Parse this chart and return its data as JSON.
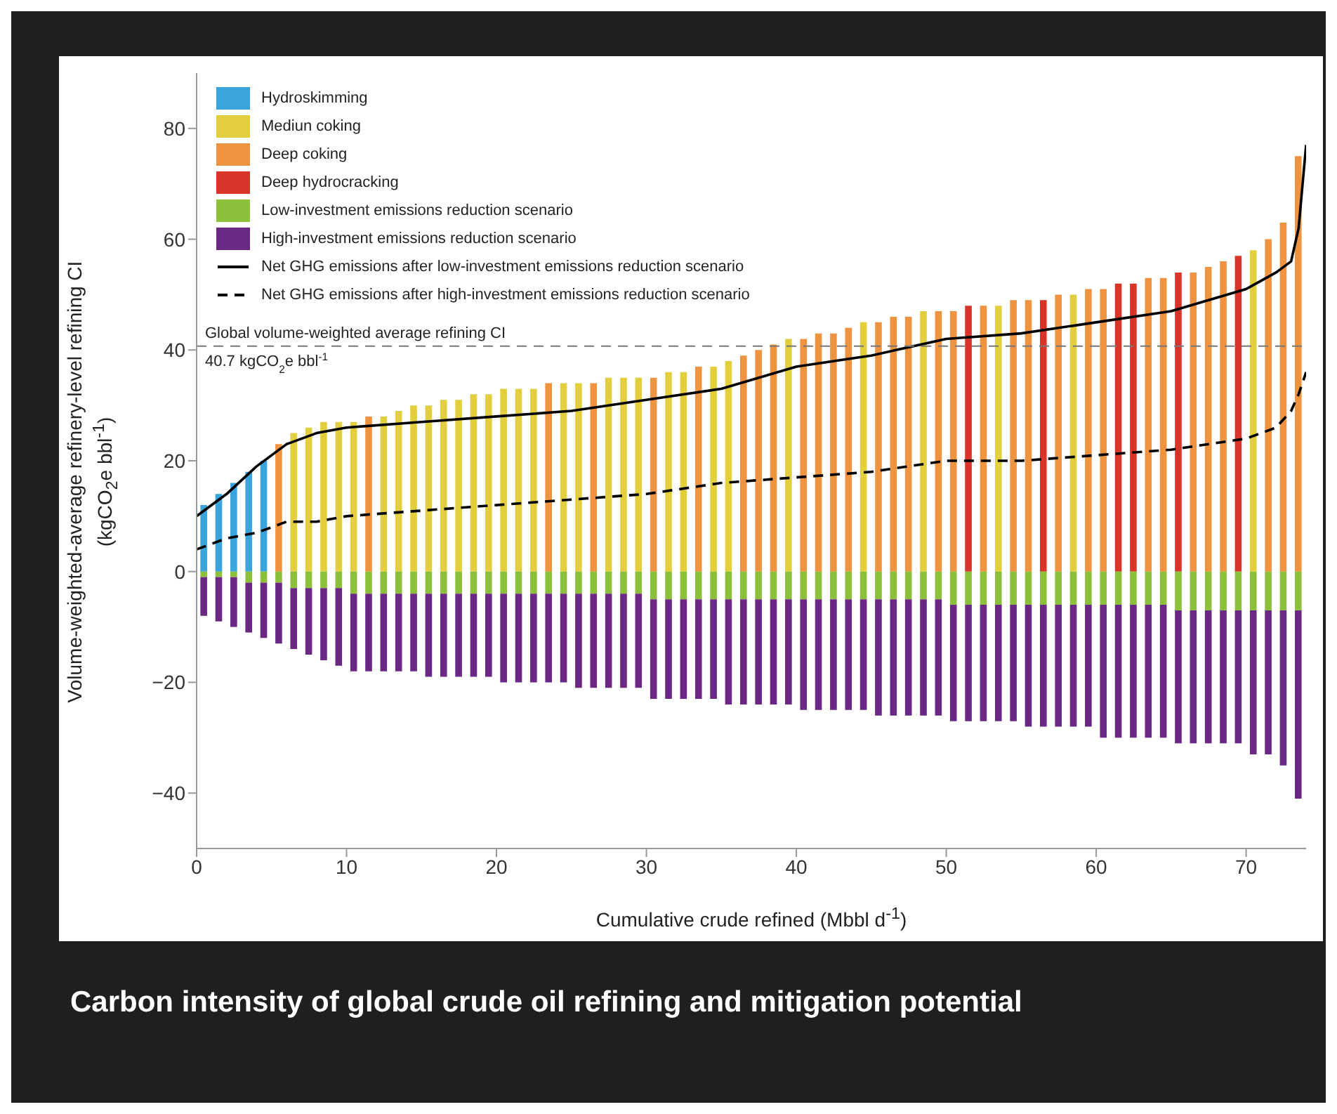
{
  "chart_data": {
    "type": "bar",
    "title": "Carbon intensity of global crude oil refining and mitigation potential",
    "xlabel": "Cumulative crude refined (Mbbl d$^{-1}$)",
    "ylabel": "Volume-weighted-average refinery-level refining CI (kgCO$_{2}$e bbl$^{-1}$)",
    "x": [
      0.5,
      1.5,
      2.5,
      3.5,
      4.5,
      5.5,
      6.5,
      7.5,
      8.5,
      9.5,
      10.5,
      11.5,
      12.5,
      13.5,
      14.5,
      15.5,
      16.5,
      17.5,
      18.5,
      19.5,
      20.5,
      21.5,
      22.5,
      23.5,
      24.5,
      25.5,
      26.5,
      27.5,
      28.5,
      29.5,
      30.5,
      31.5,
      32.5,
      33.5,
      34.5,
      35.5,
      36.5,
      37.5,
      38.5,
      39.5,
      40.5,
      41.5,
      42.5,
      43.5,
      44.5,
      45.5,
      46.5,
      47.5,
      48.5,
      49.5,
      50.5,
      51.5,
      52.5,
      53.5,
      54.5,
      55.5,
      56.5,
      57.5,
      58.5,
      59.5,
      60.5,
      61.5,
      62.5,
      63.5,
      64.5,
      65.5,
      66.5,
      67.5,
      68.5,
      69.5,
      70.5,
      71.5,
      72.5,
      73.5
    ],
    "stacked": true,
    "series": [
      {
        "name": "Hydroskimming",
        "color": "#3aa4dc",
        "values": [
          12,
          14,
          16,
          18,
          20,
          null,
          null,
          null,
          null,
          null,
          null,
          null,
          null,
          null,
          null,
          null,
          null,
          null,
          null,
          null,
          null,
          null,
          null,
          null,
          null,
          null,
          null,
          null,
          null,
          null,
          null,
          null,
          null,
          null,
          null,
          null,
          null,
          null,
          null,
          null,
          null,
          null,
          null,
          null,
          null,
          null,
          null,
          null,
          null,
          null,
          null,
          null,
          null,
          null,
          null,
          null,
          null,
          null,
          null,
          null,
          null,
          null,
          null,
          null,
          null,
          null,
          null,
          null,
          null,
          null,
          null,
          null,
          null,
          null
        ]
      },
      {
        "name": "Mediun coking",
        "color": "#e3cf3e",
        "values": [
          null,
          null,
          null,
          null,
          null,
          null,
          25,
          26,
          27,
          27,
          27,
          null,
          28,
          29,
          30,
          30,
          31,
          31,
          32,
          32,
          33,
          33,
          33,
          null,
          34,
          34,
          null,
          35,
          35,
          35,
          null,
          36,
          36,
          null,
          37,
          38,
          null,
          null,
          null,
          42,
          null,
          null,
          null,
          null,
          45,
          null,
          null,
          null,
          47,
          null,
          null,
          null,
          null,
          48,
          null,
          null,
          null,
          null,
          50,
          null,
          null,
          null,
          null,
          null,
          null,
          null,
          null,
          null,
          null,
          null,
          58,
          null,
          null,
          null
        ]
      },
      {
        "name": "Deep coking",
        "color": "#ee9440",
        "values": [
          null,
          null,
          null,
          null,
          null,
          23,
          null,
          null,
          null,
          null,
          null,
          28,
          null,
          null,
          null,
          null,
          null,
          null,
          null,
          null,
          null,
          null,
          null,
          34,
          null,
          null,
          34,
          null,
          null,
          null,
          35,
          null,
          null,
          37,
          null,
          null,
          39,
          40,
          41,
          null,
          42,
          43,
          43,
          44,
          null,
          45,
          46,
          46,
          null,
          47,
          47,
          null,
          48,
          null,
          49,
          49,
          null,
          50,
          null,
          51,
          51,
          null,
          null,
          53,
          53,
          null,
          54,
          55,
          56,
          null,
          null,
          60,
          63,
          75
        ]
      },
      {
        "name": "Deep hydrocracking",
        "color": "#d8342a",
        "values": [
          null,
          null,
          null,
          null,
          null,
          null,
          null,
          null,
          null,
          null,
          null,
          null,
          null,
          null,
          null,
          null,
          null,
          null,
          null,
          null,
          null,
          null,
          null,
          null,
          null,
          null,
          null,
          null,
          null,
          null,
          null,
          null,
          null,
          null,
          null,
          null,
          null,
          null,
          null,
          null,
          null,
          null,
          null,
          null,
          null,
          null,
          null,
          null,
          null,
          null,
          null,
          48,
          null,
          null,
          null,
          null,
          49,
          null,
          null,
          null,
          null,
          52,
          52,
          null,
          null,
          54,
          null,
          null,
          null,
          57,
          null,
          null,
          null,
          null
        ]
      },
      {
        "name": "Low-investment emissions reduction scenario",
        "color": "#8cbf3a",
        "values": [
          -1,
          -1,
          -1,
          -2,
          -2,
          -2,
          -3,
          -3,
          -3,
          -3,
          -4,
          -4,
          -4,
          -4,
          -4,
          -4,
          -4,
          -4,
          -4,
          -4,
          -4,
          -4,
          -4,
          -4,
          -4,
          -4,
          -4,
          -4,
          -4,
          -4,
          -5,
          -5,
          -5,
          -5,
          -5,
          -5,
          -5,
          -5,
          -5,
          -5,
          -5,
          -5,
          -5,
          -5,
          -5,
          -5,
          -5,
          -5,
          -5,
          -5,
          -6,
          -6,
          -6,
          -6,
          -6,
          -6,
          -6,
          -6,
          -6,
          -6,
          -6,
          -6,
          -6,
          -6,
          -6,
          -7,
          -7,
          -7,
          -7,
          -7,
          -7,
          -7,
          -7,
          -7
        ]
      },
      {
        "name": "High-investment emissions reduction scenario",
        "color": "#6a2784",
        "values": [
          -7,
          -8,
          -9,
          -9,
          -10,
          -11,
          -11,
          -12,
          -13,
          -14,
          -14,
          -14,
          -14,
          -14,
          -14,
          -15,
          -15,
          -15,
          -15,
          -15,
          -16,
          -16,
          -16,
          -16,
          -16,
          -17,
          -17,
          -17,
          -17,
          -17,
          -18,
          -18,
          -18,
          -18,
          -18,
          -19,
          -19,
          -19,
          -19,
          -19,
          -20,
          -20,
          -20,
          -20,
          -20,
          -21,
          -21,
          -21,
          -21,
          -21,
          -21,
          -21,
          -21,
          -21,
          -21,
          -22,
          -22,
          -22,
          -22,
          -22,
          -24,
          -24,
          -24,
          -24,
          -24,
          -24,
          -24,
          -24,
          -24,
          -24,
          -26,
          -26,
          -28,
          -34
        ]
      },
      {
        "type": "line",
        "name": "Net GHG emissions after low-investment emissions reduction scenario",
        "color": "#000000",
        "line_style": "solid",
        "x": [
          0,
          2,
          4,
          5,
          6,
          8,
          10,
          15,
          20,
          25,
          30,
          35,
          40,
          45,
          50,
          55,
          60,
          65,
          70,
          72,
          73,
          73.5,
          74
        ],
        "values": [
          10,
          14,
          19,
          21,
          23,
          25,
          26,
          27,
          28,
          29,
          31,
          33,
          37,
          39,
          42,
          43,
          45,
          47,
          51,
          54,
          56,
          62,
          77
        ]
      },
      {
        "type": "line",
        "name": "Net GHG emissions after high-investment emissions reduction scenario",
        "color": "#000000",
        "line_style": "dashed",
        "x": [
          0,
          2,
          4,
          5,
          6,
          8,
          10,
          15,
          20,
          25,
          30,
          35,
          40,
          45,
          50,
          55,
          60,
          65,
          70,
          72,
          73,
          73.5,
          74
        ],
        "values": [
          4,
          6,
          7,
          8,
          9,
          9,
          10,
          11,
          12,
          13,
          14,
          16,
          17,
          18,
          20,
          20,
          21,
          22,
          24,
          26,
          29,
          32,
          36
        ]
      }
    ],
    "xlim": [
      0,
      74
    ],
    "xticks": [
      0,
      10,
      20,
      30,
      40,
      50,
      60,
      70
    ],
    "ylim": [
      -50,
      90
    ],
    "yticks": [
      -40,
      -20,
      0,
      20,
      40,
      60,
      80
    ],
    "ref_lines": [
      {
        "axis": "y",
        "value": 40.7,
        "label": "Global volume-weighted average refining CI\n40.7 kgCO$_{2}$e bbl$^{-1}$",
        "color": "#777777",
        "line_style": "dashed"
      }
    ],
    "legend": "top left",
    "grid": false
  }
}
